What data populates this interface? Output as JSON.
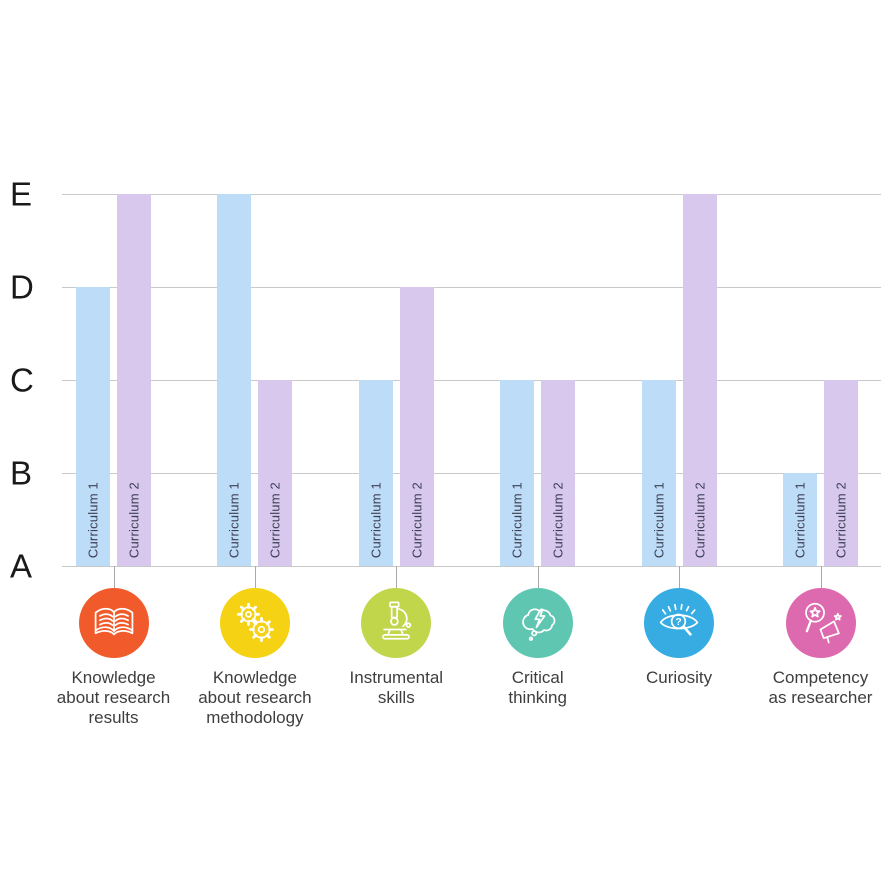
{
  "chart_data": {
    "type": "bar",
    "title": "",
    "xlabel": "",
    "ylabel": "",
    "grade_scale": [
      "A",
      "B",
      "C",
      "D",
      "E"
    ],
    "y_axis_labels_top_to_bottom": [
      "E",
      "D",
      "C",
      "B",
      "A"
    ],
    "grid": true,
    "legend_position": "none",
    "categories": [
      {
        "label": "Knowledge\nabout research\nresults",
        "icon": "open-book-icon",
        "icon_color": "#f15b2b"
      },
      {
        "label": "Knowledge\nabout research\nmethodology",
        "icon": "gears-icon",
        "icon_color": "#f6d214"
      },
      {
        "label": "Instrumental\nskills",
        "icon": "microscope-icon",
        "icon_color": "#c2d64b"
      },
      {
        "label": "Critical\nthinking",
        "icon": "thought-cloud-bolt-icon",
        "icon_color": "#5fc6b2"
      },
      {
        "label": "Curiosity",
        "icon": "curious-eye-icon",
        "icon_color": "#36ace2"
      },
      {
        "label": "Competency\nas researcher",
        "icon": "magnifier-megaphone-icon",
        "icon_color": "#dd6aae"
      }
    ],
    "series": [
      {
        "name": "Curriculum 1",
        "color": "#bddcf8",
        "values": [
          "D",
          "E",
          "C",
          "C",
          "C",
          "B"
        ]
      },
      {
        "name": "Curriculum 2",
        "color": "#d9c8ee",
        "values": [
          "E",
          "C",
          "D",
          "C",
          "E",
          "C"
        ]
      }
    ]
  },
  "colors": {
    "background": "#ffffff",
    "gridline": "#c9c9c9",
    "axis_letter": "#1a1a1a",
    "bar_label_text": "#3d4055",
    "category_label_text": "#3e3e40",
    "connector_line": "#a9a9a9",
    "icon_stroke": "#ffffff"
  }
}
